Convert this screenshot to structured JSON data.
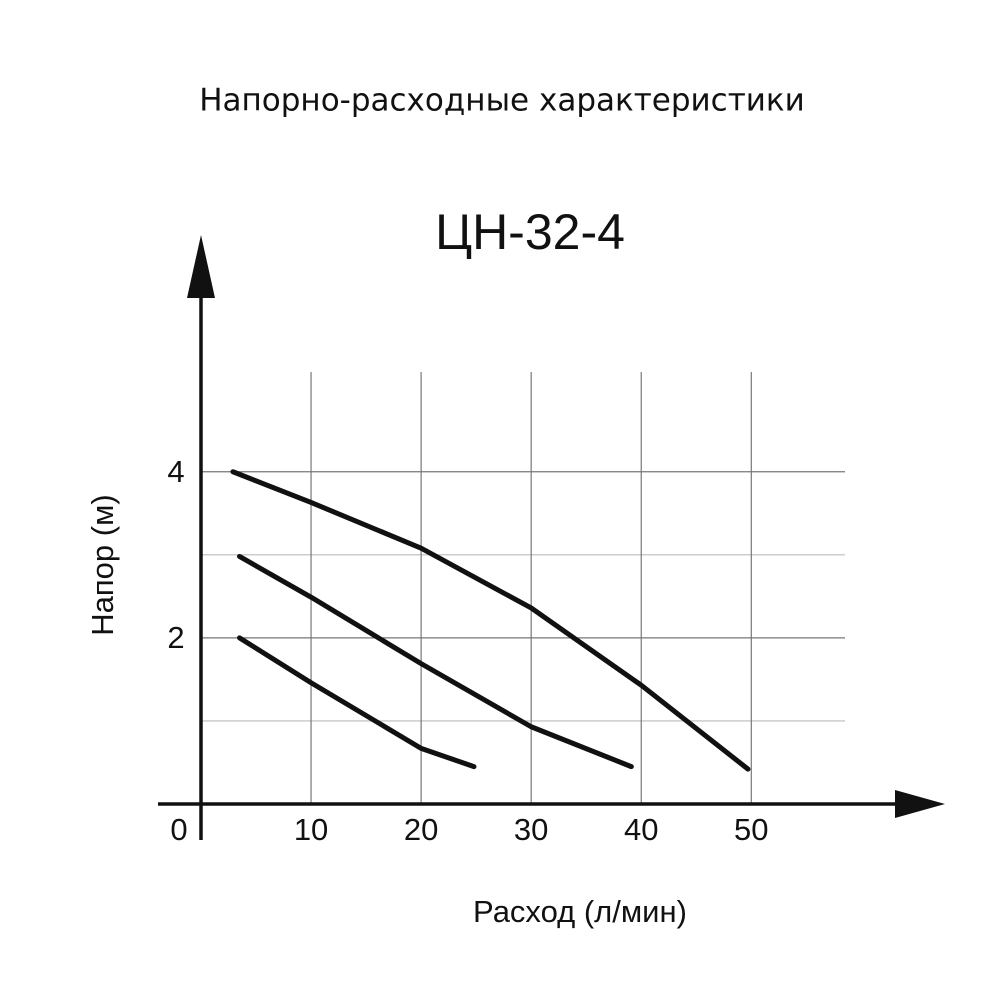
{
  "chart_data": {
    "type": "line",
    "title": "Напорно-расходные характеристики",
    "subtitle": "ЦН-32-4",
    "x_label": "Расход (л/мин)",
    "y_label": "Напор (м)",
    "xlim": [
      0,
      67.6
    ],
    "ylim": [
      0,
      6.85
    ],
    "xticks": [
      0,
      10,
      20,
      30,
      40,
      50
    ],
    "yticks": [
      2,
      4
    ],
    "yminor": [
      1,
      3
    ],
    "grid": true,
    "series": [
      {
        "color": "#111111",
        "x": [
          2.9,
          10,
          20,
          30,
          40,
          49.7
        ],
        "values": [
          4.0,
          3.63,
          3.08,
          2.36,
          1.43,
          0.42
        ]
      },
      {
        "color": "#111111",
        "x": [
          3.5,
          10,
          20,
          30,
          39.1
        ],
        "values": [
          2.98,
          2.49,
          1.69,
          0.93,
          0.45
        ]
      },
      {
        "color": "#111111",
        "x": [
          3.5,
          10,
          20,
          24.8
        ],
        "values": [
          2.0,
          1.46,
          0.67,
          0.45
        ]
      }
    ]
  }
}
